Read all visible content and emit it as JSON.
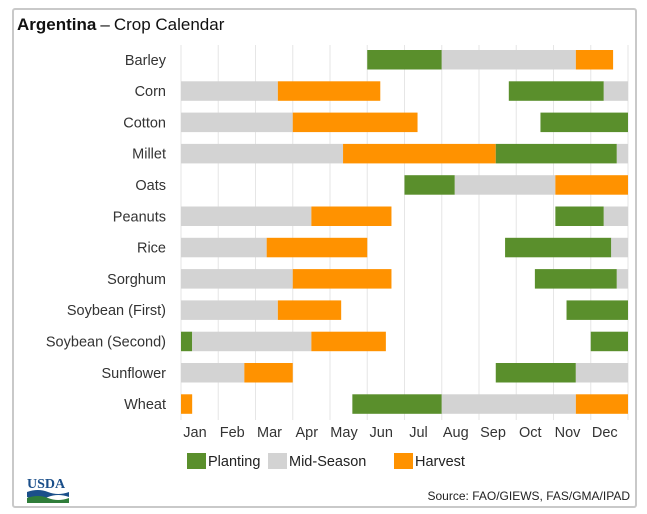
{
  "title": {
    "country": "Argentina",
    "separator": "–",
    "subtitle": "Crop Calendar"
  },
  "source": "Source: FAO/GIEWS, FAS/GMA/IPAD",
  "logo_text": "USDA",
  "colors": {
    "Planting": "#5a8f2c",
    "Mid-Season": "#d3d3d3",
    "Harvest": "#ff9200"
  },
  "legend": [
    "Planting",
    "Mid-Season",
    "Harvest"
  ],
  "chart_data": {
    "type": "bar",
    "orientation": "horizontal-gantt",
    "x_unit": "month of year (1 = Jan 1, 13 = end of Dec)",
    "xlim": [
      1,
      13
    ],
    "month_labels": [
      "Jan",
      "Feb",
      "Mar",
      "Apr",
      "May",
      "Jun",
      "Jul",
      "Aug",
      "Sep",
      "Oct",
      "Nov",
      "Dec"
    ],
    "grid": true,
    "legend_position": "bottom",
    "crops": [
      {
        "name": "Barley",
        "segments": [
          [
            "Planting",
            6.0,
            8.0
          ],
          [
            "Mid-Season",
            8.0,
            11.6
          ],
          [
            "Harvest",
            11.6,
            12.6
          ]
        ]
      },
      {
        "name": "Corn",
        "segments": [
          [
            "Mid-Season",
            1.0,
            3.6
          ],
          [
            "Harvest",
            3.6,
            6.35
          ],
          [
            "Planting",
            9.8,
            12.35
          ],
          [
            "Mid-Season",
            12.35,
            13.0
          ]
        ]
      },
      {
        "name": "Cotton",
        "segments": [
          [
            "Mid-Season",
            1.0,
            4.0
          ],
          [
            "Harvest",
            4.0,
            7.35
          ],
          [
            "Planting",
            10.65,
            13.0
          ]
        ]
      },
      {
        "name": "Millet",
        "segments": [
          [
            "Mid-Season",
            1.0,
            5.35
          ],
          [
            "Harvest",
            5.35,
            9.45
          ],
          [
            "Planting",
            9.45,
            12.7
          ],
          [
            "Mid-Season",
            12.7,
            13.0
          ]
        ]
      },
      {
        "name": "Oats",
        "segments": [
          [
            "Planting",
            7.0,
            8.35
          ],
          [
            "Mid-Season",
            8.35,
            11.05
          ],
          [
            "Harvest",
            11.05,
            13.0
          ]
        ]
      },
      {
        "name": "Peanuts",
        "segments": [
          [
            "Mid-Season",
            1.0,
            4.5
          ],
          [
            "Harvest",
            4.5,
            6.65
          ],
          [
            "Planting",
            11.05,
            12.35
          ],
          [
            "Mid-Season",
            12.35,
            13.0
          ]
        ]
      },
      {
        "name": "Rice",
        "segments": [
          [
            "Mid-Season",
            1.0,
            3.3
          ],
          [
            "Harvest",
            3.3,
            6.0
          ],
          [
            "Planting",
            9.7,
            12.55
          ],
          [
            "Mid-Season",
            12.55,
            13.0
          ]
        ]
      },
      {
        "name": "Sorghum",
        "segments": [
          [
            "Mid-Season",
            1.0,
            4.0
          ],
          [
            "Harvest",
            4.0,
            6.65
          ],
          [
            "Planting",
            10.5,
            12.7
          ],
          [
            "Mid-Season",
            12.7,
            13.0
          ]
        ]
      },
      {
        "name": "Soybean (First)",
        "segments": [
          [
            "Mid-Season",
            1.0,
            3.6
          ],
          [
            "Harvest",
            3.6,
            5.3
          ],
          [
            "Planting",
            11.35,
            13.0
          ]
        ]
      },
      {
        "name": "Soybean (Second)",
        "segments": [
          [
            "Planting",
            1.0,
            1.3
          ],
          [
            "Mid-Season",
            1.3,
            4.5
          ],
          [
            "Harvest",
            4.5,
            6.5
          ],
          [
            "Planting",
            12.0,
            13.0
          ]
        ]
      },
      {
        "name": "Sunflower",
        "segments": [
          [
            "Mid-Season",
            1.0,
            2.7
          ],
          [
            "Harvest",
            2.7,
            4.0
          ],
          [
            "Planting",
            9.45,
            11.6
          ],
          [
            "Mid-Season",
            11.6,
            13.0
          ]
        ]
      },
      {
        "name": "Wheat",
        "segments": [
          [
            "Harvest",
            1.0,
            1.3
          ],
          [
            "Planting",
            5.6,
            8.0
          ],
          [
            "Mid-Season",
            8.0,
            11.6
          ],
          [
            "Harvest",
            11.6,
            13.0
          ]
        ]
      }
    ]
  }
}
